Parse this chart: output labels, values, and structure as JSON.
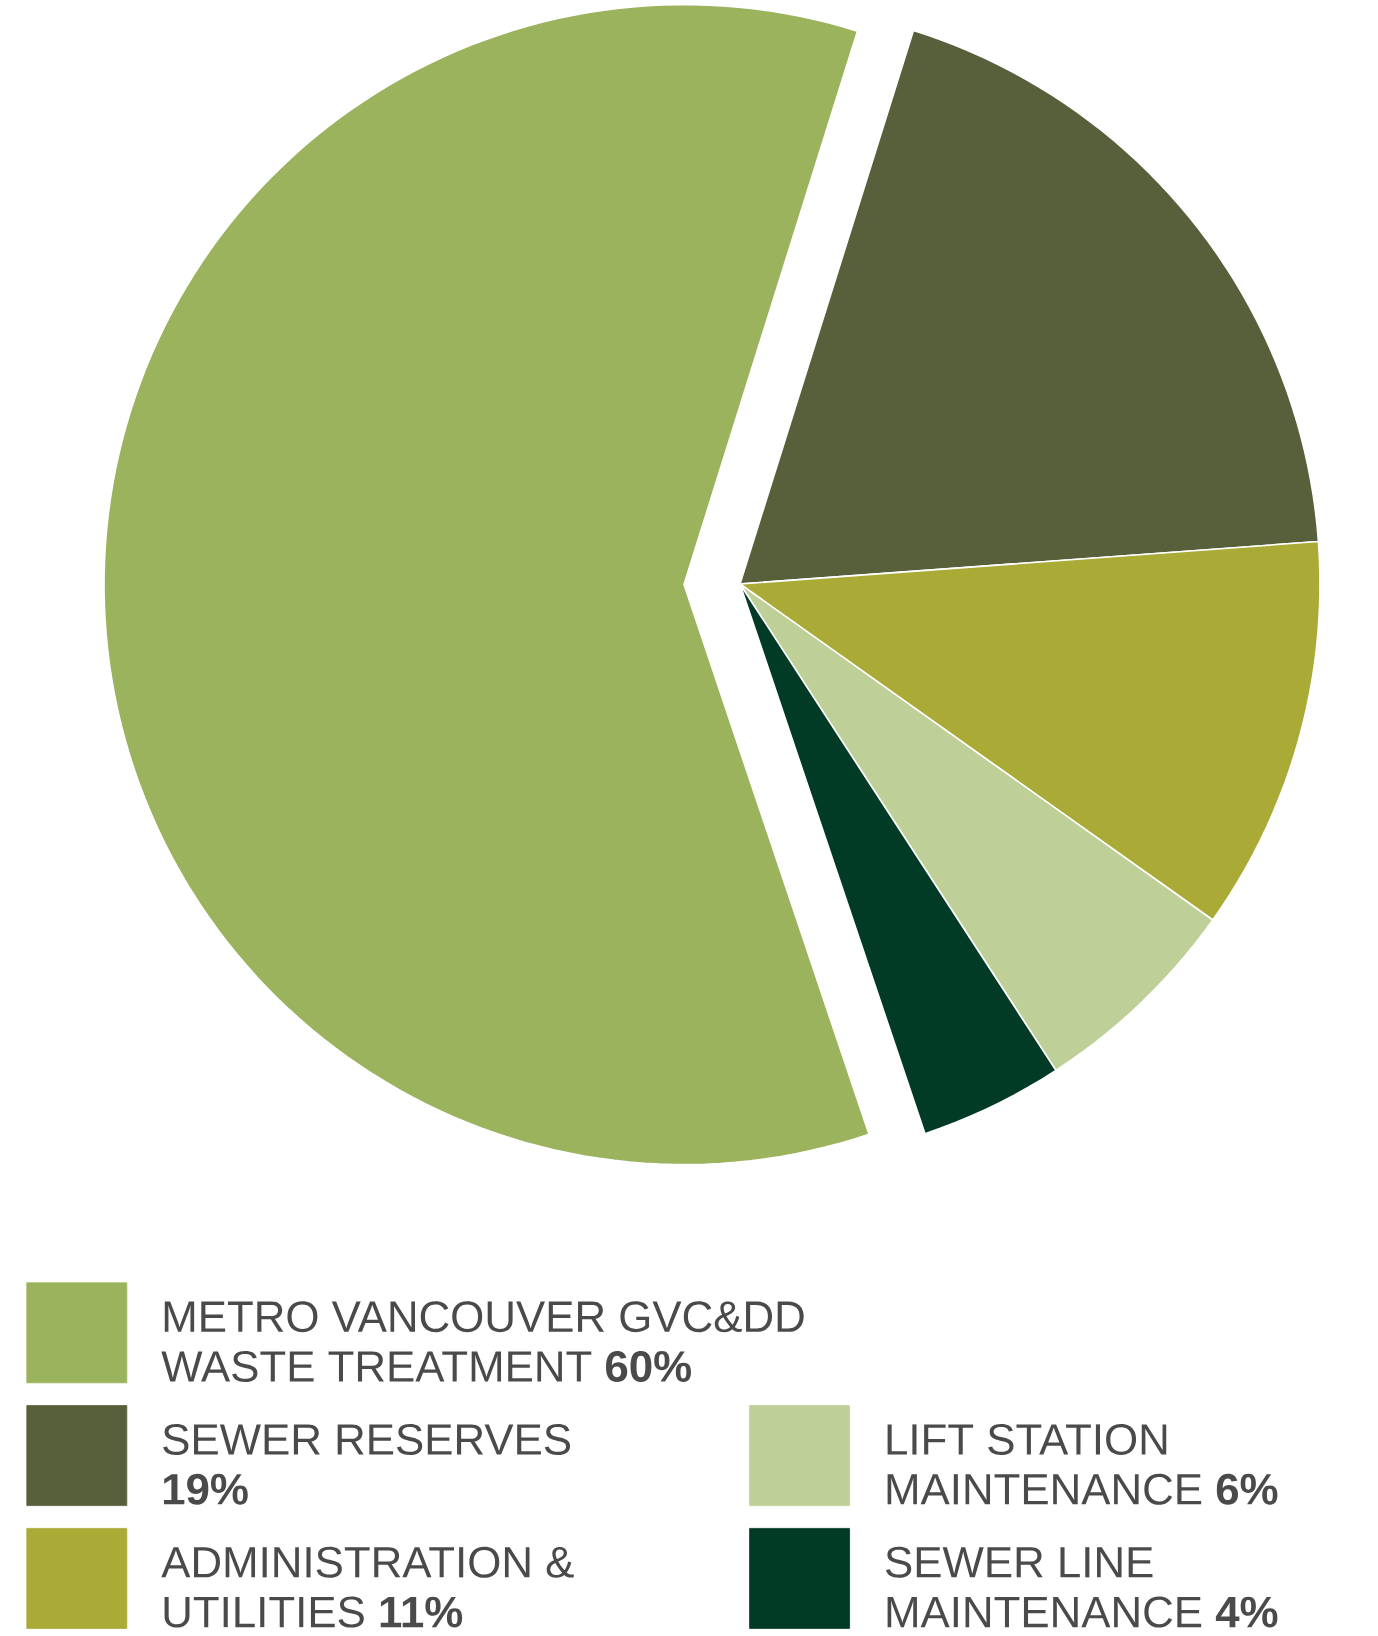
{
  "chart_data": {
    "type": "pie",
    "categories": [
      "METRO VANCOUVER GVC&DD WASTE TREATMENT",
      "SEWER RESERVES",
      "ADMINISTRATION & UTILITIES",
      "LIFT STATION MAINTENANCE",
      "SEWER LINE MAINTENANCE"
    ],
    "values": [
      60,
      19,
      11,
      6,
      4
    ],
    "value_labels": [
      "60%",
      "19%",
      "11%",
      "6%",
      "4%"
    ],
    "colors": [
      "#9bb35d",
      "#58603b",
      "#aaab37",
      "#bfcf98",
      "#013b25"
    ],
    "legend": "bottom"
  }
}
